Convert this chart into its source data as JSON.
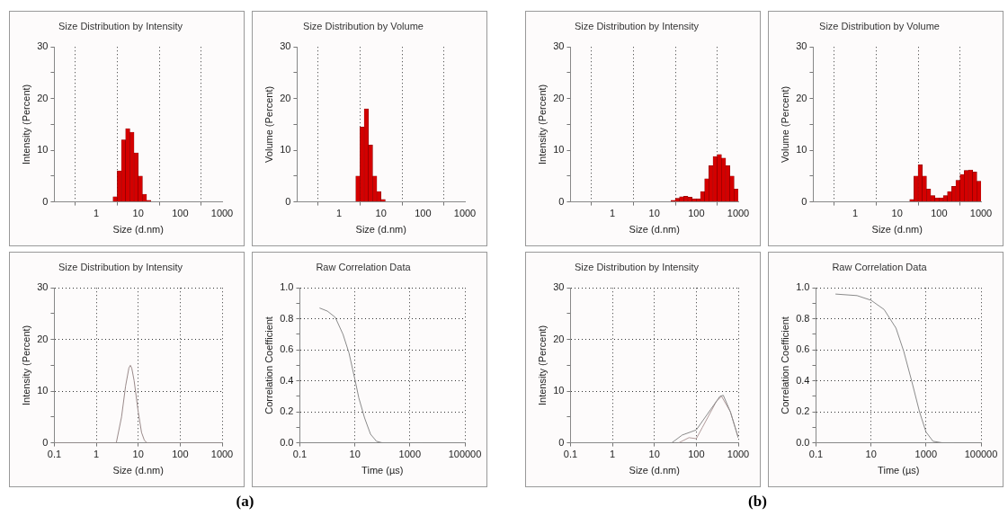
{
  "chart_data": [
    {
      "type": "histogram",
      "title": "Size Distribution by Intensity",
      "xlabel": "Size (d.nm)",
      "ylabel": "Intensity (Percent)",
      "log": "x",
      "grid": "x",
      "color": "#d40000",
      "xlim": [
        0.1,
        1000
      ],
      "xticks": [
        1,
        10,
        100,
        1000
      ],
      "ylim": [
        0,
        30
      ],
      "yticks": [
        0,
        {
          "value": 5,
          "label": null
        },
        10,
        {
          "value": 15,
          "label": null
        },
        20,
        {
          "value": 25,
          "label": null
        },
        30
      ],
      "bins": [
        2.51,
        3.16,
        3.98,
        5.01,
        6.31,
        7.94,
        10,
        12.6,
        15.8,
        20
      ],
      "values": [
        1,
        6,
        12,
        14.2,
        13.5,
        9.5,
        5,
        1.5,
        0.3
      ]
    },
    {
      "type": "histogram",
      "title": "Size Distribution by Volume",
      "xlabel": "Size (d.nm)",
      "ylabel": "Volume (Percent)",
      "log": "x",
      "grid": "x",
      "color": "#d40000",
      "xlim": [
        0.1,
        1000
      ],
      "xticks": [
        1,
        10,
        100,
        1000
      ],
      "ylim": [
        0,
        30
      ],
      "yticks": [
        0,
        {
          "value": 5,
          "label": null
        },
        10,
        {
          "value": 15,
          "label": null
        },
        20,
        {
          "value": 25,
          "label": null
        },
        30
      ],
      "bins": [
        2.51,
        3.16,
        3.98,
        5.01,
        6.31,
        7.94,
        10,
        12.6
      ],
      "values": [
        5,
        14.5,
        18,
        11,
        5,
        2,
        0.5
      ]
    },
    {
      "type": "line",
      "title": "Size Distribution by Intensity",
      "xlabel": "Size (d.nm)",
      "ylabel": "Intensity (Percent)",
      "log": "x",
      "grid": true,
      "xlim": [
        0.1,
        1000
      ],
      "xticks": [
        0.1,
        1,
        10,
        100,
        1000
      ],
      "ylim": [
        0,
        30
      ],
      "yticks": [
        0,
        {
          "value": 5,
          "label": null
        },
        10,
        {
          "value": 15,
          "label": null
        },
        20,
        {
          "value": 25,
          "label": null
        },
        30
      ],
      "x": [
        0.1,
        1,
        2,
        3,
        4,
        5,
        6,
        6.5,
        7,
        8,
        10,
        12,
        14,
        16,
        20,
        100,
        1000
      ],
      "series": [
        {
          "color": "#9a8a8a",
          "values": [
            0,
            0,
            0,
            0,
            5,
            11,
            14.5,
            15,
            14.5,
            12,
            6,
            2,
            0.5,
            0,
            0,
            0,
            0
          ]
        }
      ]
    },
    {
      "type": "line",
      "title": "Raw Correlation Data",
      "xlabel": "Time (µs)",
      "ylabel": "Correlation Coefficient",
      "log": "x",
      "grid": true,
      "xlim": [
        0.1,
        100000
      ],
      "xticks": [
        0.1,
        10,
        1000,
        100000
      ],
      "ylim": [
        0,
        1
      ],
      "yticks": [
        {
          "value": 0,
          "label": "0.0"
        },
        {
          "value": 0.1,
          "label": null
        },
        0.2,
        {
          "value": 0.3,
          "label": null
        },
        0.4,
        {
          "value": 0.5,
          "label": null
        },
        0.6,
        {
          "value": 0.7,
          "label": null
        },
        0.8,
        {
          "value": 0.9,
          "label": null
        },
        {
          "value": 1,
          "label": "1.0"
        }
      ],
      "x": [
        0.52,
        1,
        1.93,
        3.7,
        6.1,
        10,
        13.9,
        22.6,
        37,
        61,
        100,
        300,
        1000,
        3000
      ],
      "series": [
        {
          "color": "#8a8a8a",
          "values": [
            0.87,
            0.85,
            0.81,
            0.7,
            0.58,
            0.41,
            0.29,
            0.16,
            0.056,
            0.01,
            0,
            0,
            0,
            0
          ]
        }
      ],
      "annotations": [
        "(a)"
      ]
    },
    {
      "type": "histogram",
      "title": "Size Distribution by Intensity",
      "xlabel": "Size (d.nm)",
      "ylabel": "Intensity (Percent)",
      "log": "x",
      "grid": "x",
      "color": "#d40000",
      "xlim": [
        0.1,
        1000
      ],
      "xticks": [
        1,
        10,
        100,
        1000
      ],
      "ylim": [
        0,
        30
      ],
      "yticks": [
        0,
        {
          "value": 5,
          "label": null
        },
        10,
        {
          "value": 15,
          "label": null
        },
        20,
        {
          "value": 25,
          "label": null
        },
        30
      ],
      "bins": [
        25.1,
        31.6,
        39.8,
        50.1,
        63.1,
        79.4,
        100,
        125.9,
        158.5,
        199.5,
        251.2,
        316.2,
        398.1,
        501.2,
        631,
        794.3,
        1000
      ],
      "values": [
        0.3,
        0.7,
        1,
        1.1,
        0.9,
        0.6,
        0.6,
        2,
        4.5,
        7,
        8.8,
        9.2,
        8.5,
        7,
        5,
        2.5
      ]
    },
    {
      "type": "histogram",
      "title": "Size Distribution by Volume",
      "xlabel": "Size (d.nm)",
      "ylabel": "Volume (Percent)",
      "log": "x",
      "grid": "x",
      "color": "#d40000",
      "xlim": [
        0.1,
        1000
      ],
      "xticks": [
        1,
        10,
        100,
        1000
      ],
      "ylim": [
        0,
        30
      ],
      "yticks": [
        0,
        {
          "value": 5,
          "label": null
        },
        10,
        {
          "value": 15,
          "label": null
        },
        20,
        {
          "value": 25,
          "label": null
        },
        30
      ],
      "bins": [
        20,
        25.1,
        31.6,
        39.8,
        50.1,
        63.1,
        79.4,
        100,
        125.9,
        158.5,
        199.5,
        251.2,
        316.2,
        398.1,
        501.2,
        631,
        794.3,
        1000
      ],
      "values": [
        0.5,
        5,
        7.2,
        5,
        2.5,
        1.2,
        0.8,
        0.8,
        1.2,
        2,
        3,
        4.2,
        5.3,
        6.1,
        6.2,
        5.8,
        4
      ]
    },
    {
      "type": "line",
      "title": "Size Distribution by Intensity",
      "xlabel": "Size (d.nm)",
      "ylabel": "Intensity (Percent)",
      "log": "x",
      "grid": true,
      "xlim": [
        0.1,
        1000
      ],
      "xticks": [
        0.1,
        1,
        10,
        100,
        1000
      ],
      "ylim": [
        0,
        30
      ],
      "yticks": [
        0,
        {
          "value": 5,
          "label": null
        },
        10,
        {
          "value": 15,
          "label": null
        },
        20,
        {
          "value": 25,
          "label": null
        },
        30
      ],
      "series": [
        {
          "color": "#8a8a8a",
          "x": [
            0.1,
            10,
            26,
            46,
            100,
            222,
            366,
            440,
            650,
            1000
          ],
          "values": [
            0,
            0,
            0,
            1.5,
            2.5,
            6.5,
            9,
            9.2,
            6,
            1
          ]
        },
        {
          "color": "#b09a9a",
          "x": [
            38,
            67,
            100,
            140,
            300,
            400,
            650,
            1000
          ],
          "values": [
            0,
            1,
            0.8,
            3,
            8,
            9,
            6,
            1
          ]
        }
      ]
    },
    {
      "type": "line",
      "title": "Raw Correlation Data",
      "xlabel": "Time (µs)",
      "ylabel": "Correlation Coefficient",
      "log": "x",
      "grid": true,
      "xlim": [
        0.1,
        100000
      ],
      "xticks": [
        0.1,
        10,
        1000,
        100000
      ],
      "ylim": [
        0,
        1
      ],
      "yticks": [
        {
          "value": 0,
          "label": "0.0"
        },
        {
          "value": 0.1,
          "label": null
        },
        0.2,
        {
          "value": 0.3,
          "label": null
        },
        0.4,
        {
          "value": 0.5,
          "label": null
        },
        0.6,
        {
          "value": 0.7,
          "label": null
        },
        0.8,
        {
          "value": 0.9,
          "label": null
        },
        {
          "value": 1,
          "label": "1.0"
        }
      ],
      "x": [
        0.51,
        3.1,
        10,
        30,
        81,
        155,
        300,
        580,
        1000,
        1800,
        4000,
        10800
      ],
      "series": [
        {
          "color": "#8a8a8a",
          "values": [
            0.96,
            0.95,
            0.92,
            0.86,
            0.74,
            0.59,
            0.4,
            0.2,
            0.07,
            0.01,
            0,
            0
          ]
        }
      ],
      "annotations": [
        "(b)"
      ]
    }
  ]
}
